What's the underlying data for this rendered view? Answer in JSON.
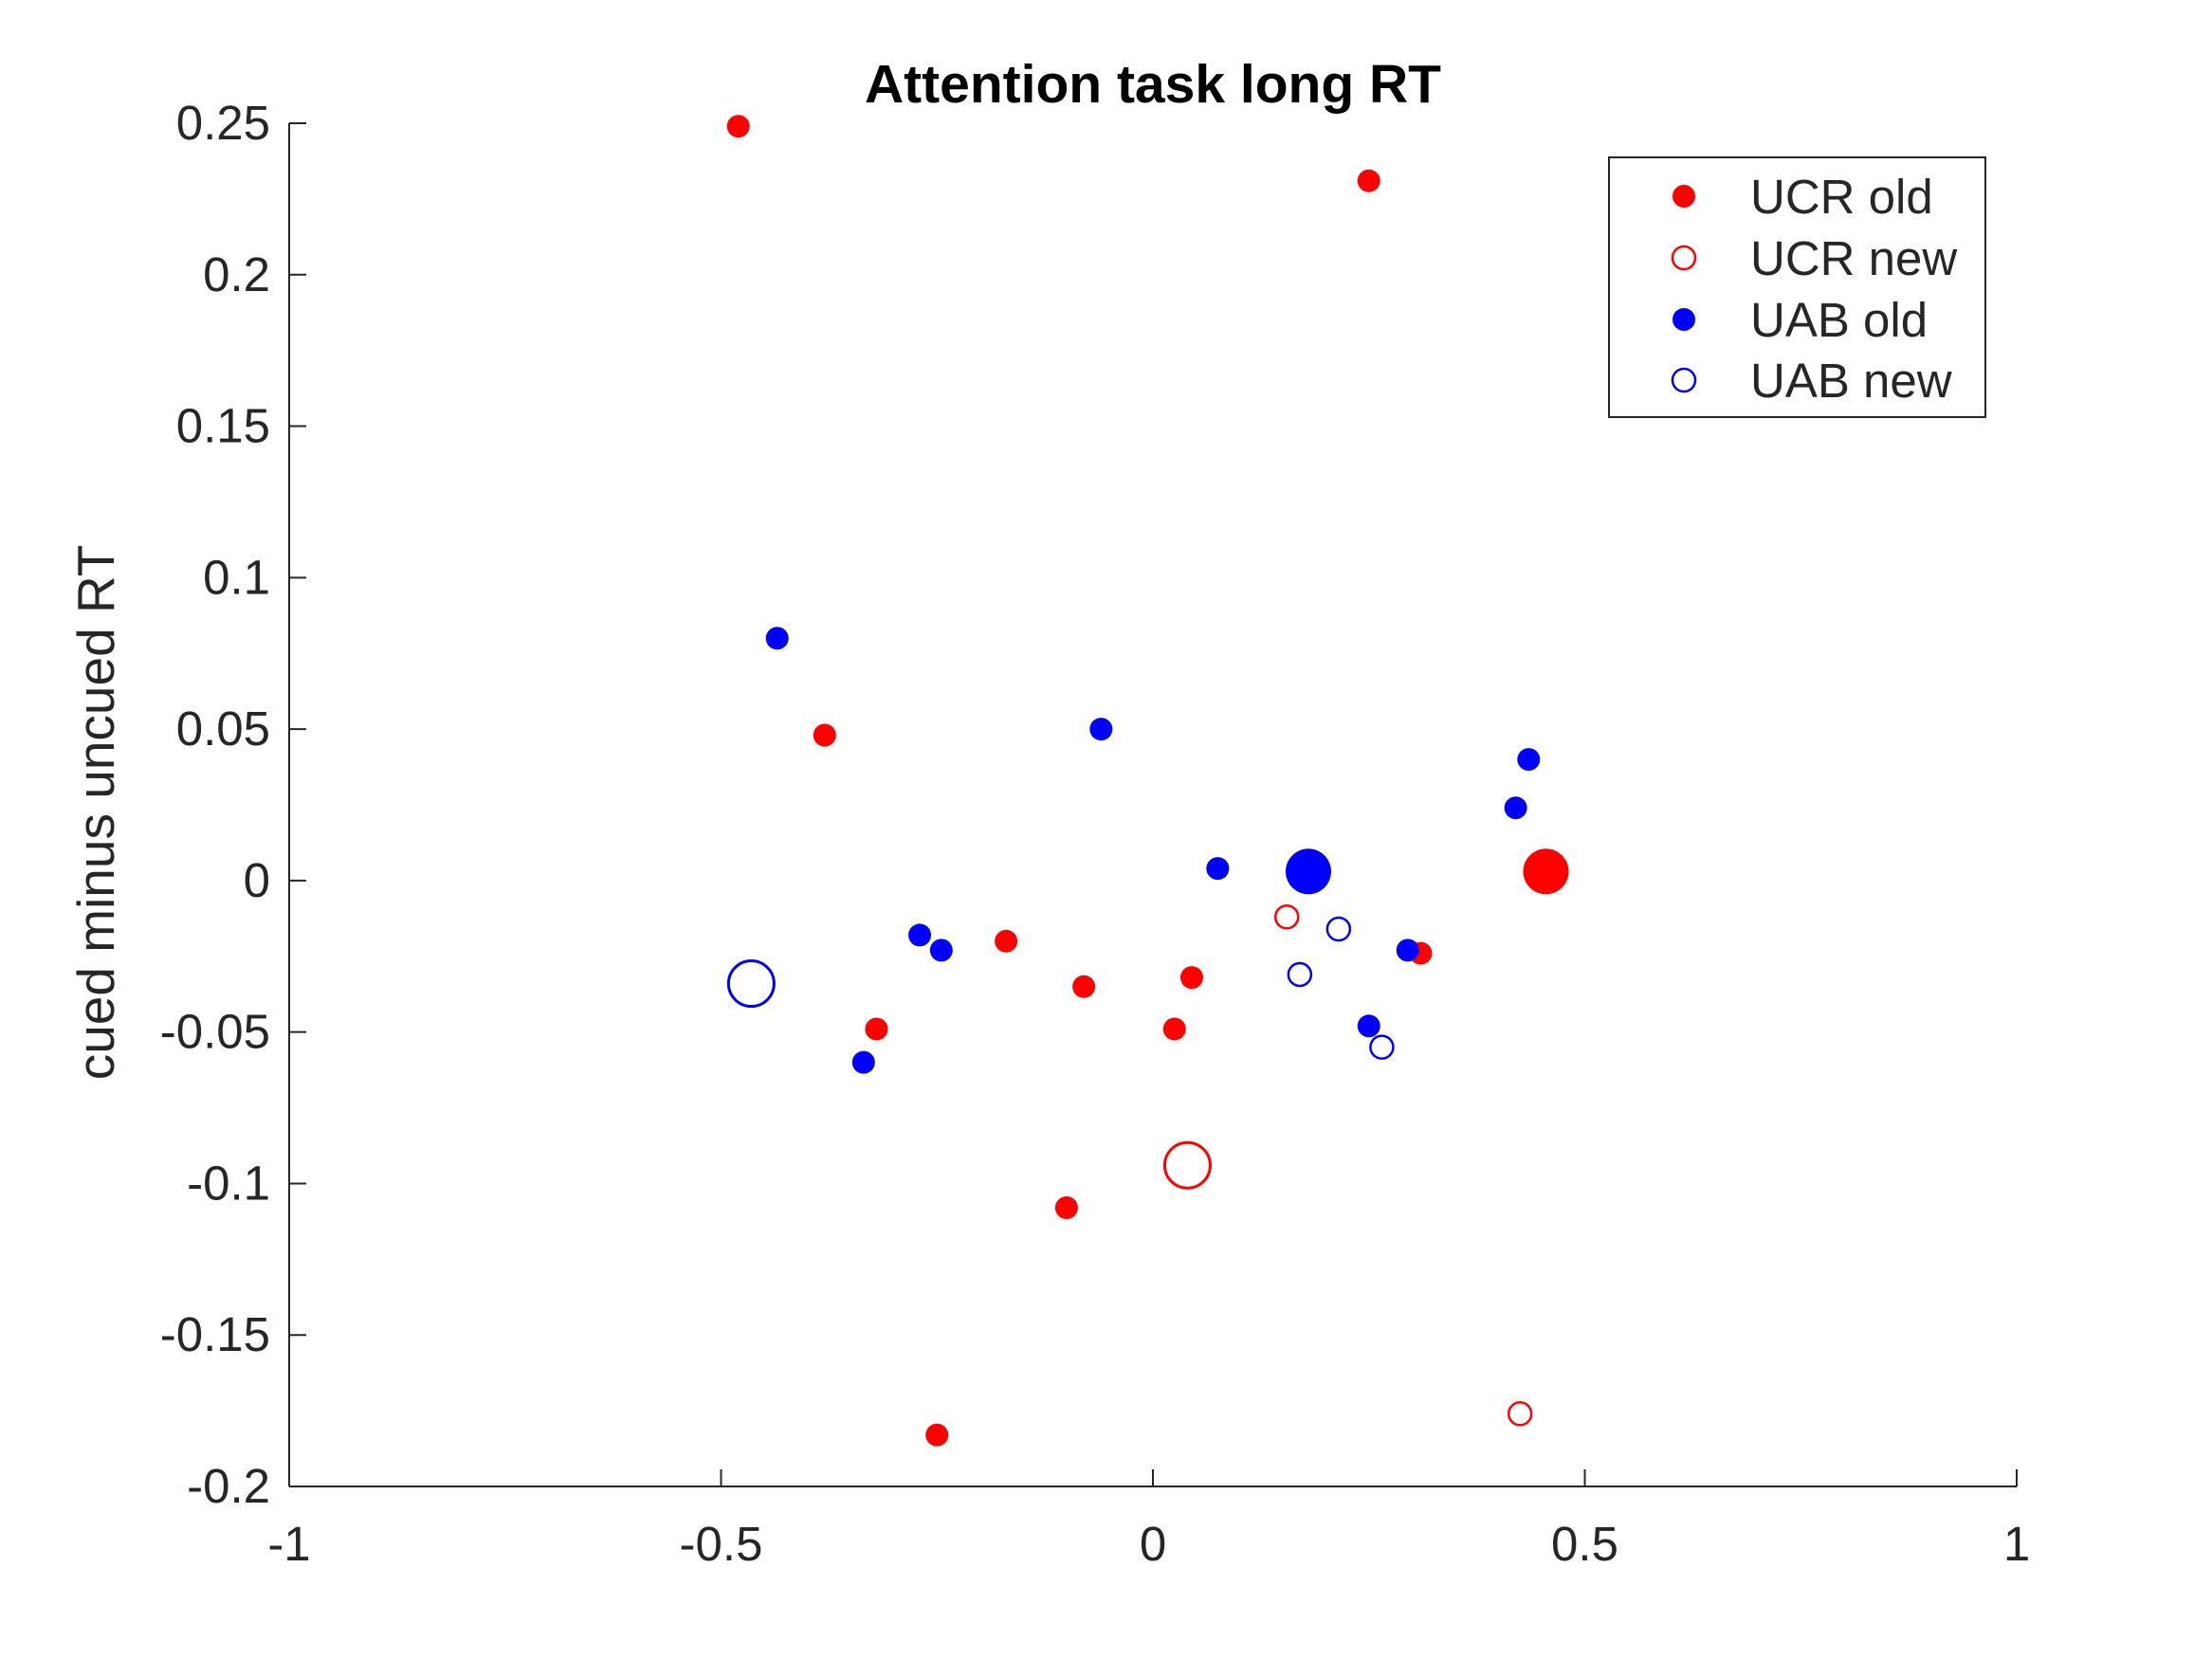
{
  "chart_data": {
    "type": "scatter",
    "title": "Attention task long RT",
    "xlabel": "",
    "ylabel": "cued minus uncued RT",
    "xlim": [
      -1,
      1
    ],
    "ylim": [
      -0.2,
      0.25
    ],
    "xticks": [
      -1,
      -0.5,
      0,
      0.5,
      1
    ],
    "xtick_labels": [
      "-1",
      "-0.5",
      "0",
      "0.5",
      "1"
    ],
    "yticks": [
      -0.2,
      -0.15,
      -0.1,
      -0.05,
      0,
      0.05,
      0.1,
      0.15,
      0.2,
      0.25
    ],
    "ytick_labels": [
      "-0.2",
      "-0.15",
      "-0.1",
      "-0.05",
      "0",
      "0.05",
      "0.1",
      "0.15",
      "0.2",
      "0.25"
    ],
    "grid": false,
    "legend_position": "top-right",
    "series": [
      {
        "name": "UCR old",
        "color": "#ff0000",
        "filled": true,
        "points": [
          {
            "x": -0.48,
            "y": 0.249
          },
          {
            "x": 0.25,
            "y": 0.231
          },
          {
            "x": -0.38,
            "y": 0.048
          },
          {
            "x": -0.17,
            "y": -0.02
          },
          {
            "x": -0.08,
            "y": -0.035
          },
          {
            "x": 0.045,
            "y": -0.032
          },
          {
            "x": 0.025,
            "y": -0.049
          },
          {
            "x": -0.32,
            "y": -0.049
          },
          {
            "x": 0.31,
            "y": -0.024
          },
          {
            "x": -0.1,
            "y": -0.108
          },
          {
            "x": -0.25,
            "y": -0.183
          },
          {
            "x": 0.455,
            "y": 0.003,
            "large": true
          }
        ]
      },
      {
        "name": "UCR new",
        "color": "#ff0000",
        "filled": false,
        "points": [
          {
            "x": 0.155,
            "y": -0.012
          },
          {
            "x": 0.425,
            "y": -0.176
          },
          {
            "x": 0.04,
            "y": -0.094,
            "large": true
          }
        ]
      },
      {
        "name": "UAB old",
        "color": "#0000ff",
        "filled": true,
        "points": [
          {
            "x": -0.435,
            "y": 0.08
          },
          {
            "x": -0.06,
            "y": 0.05
          },
          {
            "x": 0.435,
            "y": 0.04
          },
          {
            "x": 0.42,
            "y": 0.024
          },
          {
            "x": 0.075,
            "y": 0.004
          },
          {
            "x": -0.27,
            "y": -0.018
          },
          {
            "x": -0.245,
            "y": -0.023
          },
          {
            "x": 0.295,
            "y": -0.023
          },
          {
            "x": 0.25,
            "y": -0.048
          },
          {
            "x": -0.335,
            "y": -0.06
          },
          {
            "x": 0.18,
            "y": 0.003,
            "large": true
          }
        ]
      },
      {
        "name": "UAB new",
        "color": "#0000ff",
        "filled": false,
        "points": [
          {
            "x": 0.215,
            "y": -0.016
          },
          {
            "x": 0.17,
            "y": -0.031
          },
          {
            "x": 0.265,
            "y": -0.055
          },
          {
            "x": -0.465,
            "y": -0.034,
            "large": true
          }
        ]
      }
    ]
  }
}
